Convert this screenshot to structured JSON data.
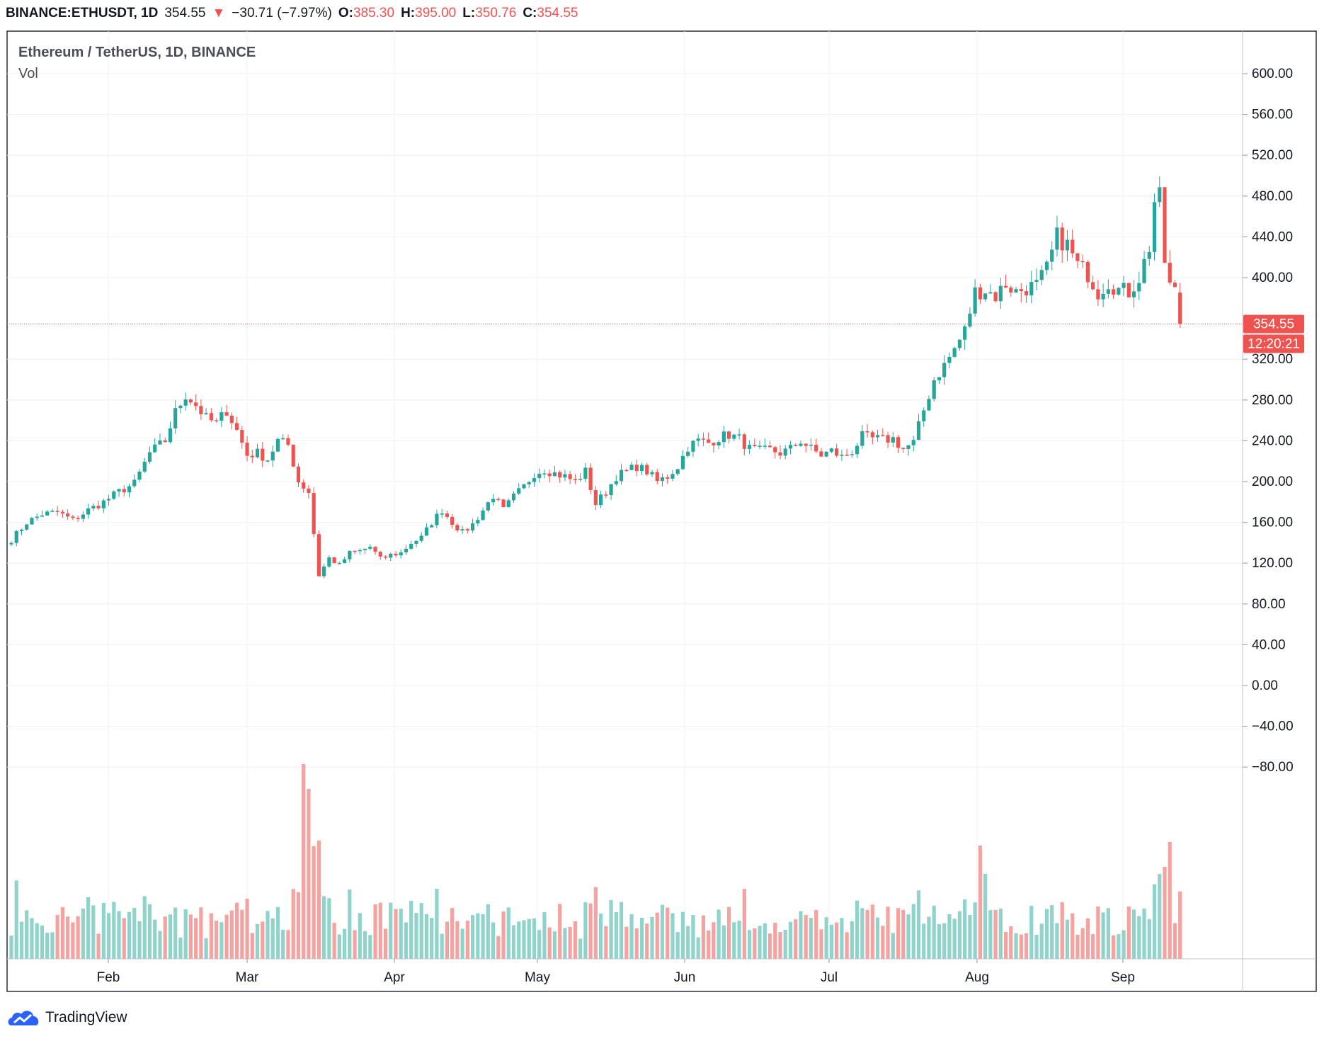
{
  "header": {
    "symbol": "BINANCE:ETHUSDT, 1D",
    "last": "354.55",
    "change": "−30.71 (−7.97%)",
    "open_label": "O:",
    "open": "385.30",
    "high_label": "H:",
    "high": "395.00",
    "low_label": "L:",
    "low": "350.76",
    "close_label": "C:",
    "close": "354.55"
  },
  "legend": {
    "title": "Ethereum / TetherUS, 1D, BINANCE",
    "vol": "Vol"
  },
  "price_badge": "354.55",
  "countdown_badge": "12:20:21",
  "branding": "TradingView",
  "colors": {
    "up": "#26a69a",
    "down": "#ef5350",
    "vol_up": "#8fd3cb",
    "vol_down": "#f4a3a0",
    "grid": "#eef1f5"
  },
  "chart_data": {
    "type": "candlestick",
    "x_ticks": [
      "Feb",
      "Mar",
      "Apr",
      "May",
      "Jun",
      "Jul",
      "Aug",
      "Sep"
    ],
    "y_ticks": [
      "600.00",
      "560.00",
      "520.00",
      "480.00",
      "440.00",
      "400.00",
      "320.00",
      "280.00",
      "240.00",
      "200.00",
      "160.00",
      "120.00",
      "80.00",
      "40.00",
      "0.00",
      "−40.00",
      "−80.00"
    ],
    "ylim": [
      -122,
      628
    ],
    "last_price": 354.55,
    "anchors": [
      [
        0,
        143
      ],
      [
        3,
        160
      ],
      [
        6,
        168
      ],
      [
        9,
        170
      ],
      [
        12,
        162
      ],
      [
        15,
        172
      ],
      [
        18,
        180
      ],
      [
        21,
        190
      ],
      [
        24,
        198
      ],
      [
        27,
        228
      ],
      [
        30,
        240
      ],
      [
        32,
        268
      ],
      [
        34,
        285
      ],
      [
        36,
        275
      ],
      [
        38,
        262
      ],
      [
        40,
        257
      ],
      [
        42,
        270
      ],
      [
        44,
        250
      ],
      [
        46,
        226
      ],
      [
        48,
        228
      ],
      [
        50,
        222
      ],
      [
        52,
        240
      ],
      [
        54,
        236
      ],
      [
        56,
        200
      ],
      [
        58,
        190
      ],
      [
        60,
        108
      ],
      [
        62,
        125
      ],
      [
        64,
        118
      ],
      [
        66,
        130
      ],
      [
        68,
        132
      ],
      [
        70,
        136
      ],
      [
        72,
        124
      ],
      [
        74,
        128
      ],
      [
        76,
        130
      ],
      [
        78,
        140
      ],
      [
        80,
        145
      ],
      [
        82,
        160
      ],
      [
        84,
        172
      ],
      [
        86,
        160
      ],
      [
        88,
        150
      ],
      [
        90,
        158
      ],
      [
        92,
        172
      ],
      [
        94,
        186
      ],
      [
        96,
        172
      ],
      [
        98,
        185
      ],
      [
        100,
        195
      ],
      [
        102,
        208
      ],
      [
        104,
        212
      ],
      [
        106,
        208
      ],
      [
        108,
        205
      ],
      [
        110,
        200
      ],
      [
        112,
        210
      ],
      [
        114,
        178
      ],
      [
        116,
        190
      ],
      [
        118,
        205
      ],
      [
        120,
        210
      ],
      [
        122,
        215
      ],
      [
        124,
        210
      ],
      [
        126,
        200
      ],
      [
        128,
        205
      ],
      [
        130,
        215
      ],
      [
        132,
        234
      ],
      [
        134,
        240
      ],
      [
        136,
        238
      ],
      [
        138,
        243
      ],
      [
        140,
        246
      ],
      [
        142,
        242
      ],
      [
        144,
        232
      ],
      [
        146,
        230
      ],
      [
        148,
        231
      ],
      [
        150,
        228
      ],
      [
        152,
        232
      ],
      [
        154,
        240
      ],
      [
        156,
        232
      ],
      [
        158,
        226
      ],
      [
        160,
        230
      ],
      [
        162,
        224
      ],
      [
        164,
        230
      ],
      [
        166,
        244
      ],
      [
        168,
        242
      ],
      [
        170,
        241
      ],
      [
        172,
        242
      ],
      [
        174,
        232
      ],
      [
        176,
        238
      ],
      [
        178,
        270
      ],
      [
        180,
        300
      ],
      [
        182,
        314
      ],
      [
        184,
        330
      ],
      [
        186,
        348
      ],
      [
        188,
        386
      ],
      [
        190,
        388
      ],
      [
        192,
        382
      ],
      [
        194,
        394
      ],
      [
        196,
        386
      ],
      [
        198,
        390
      ],
      [
        200,
        392
      ],
      [
        202,
        408
      ],
      [
        204,
        440
      ],
      [
        206,
        432
      ],
      [
        208,
        412
      ],
      [
        210,
        404
      ],
      [
        212,
        386
      ],
      [
        214,
        396
      ],
      [
        216,
        388
      ],
      [
        218,
        386
      ],
      [
        220,
        400
      ],
      [
        222,
        430
      ],
      [
        223,
        475
      ],
      [
        224,
        478
      ],
      [
        225,
        416
      ],
      [
        226,
        392
      ],
      [
        227,
        386
      ],
      [
        228,
        354.55
      ]
    ]
  }
}
